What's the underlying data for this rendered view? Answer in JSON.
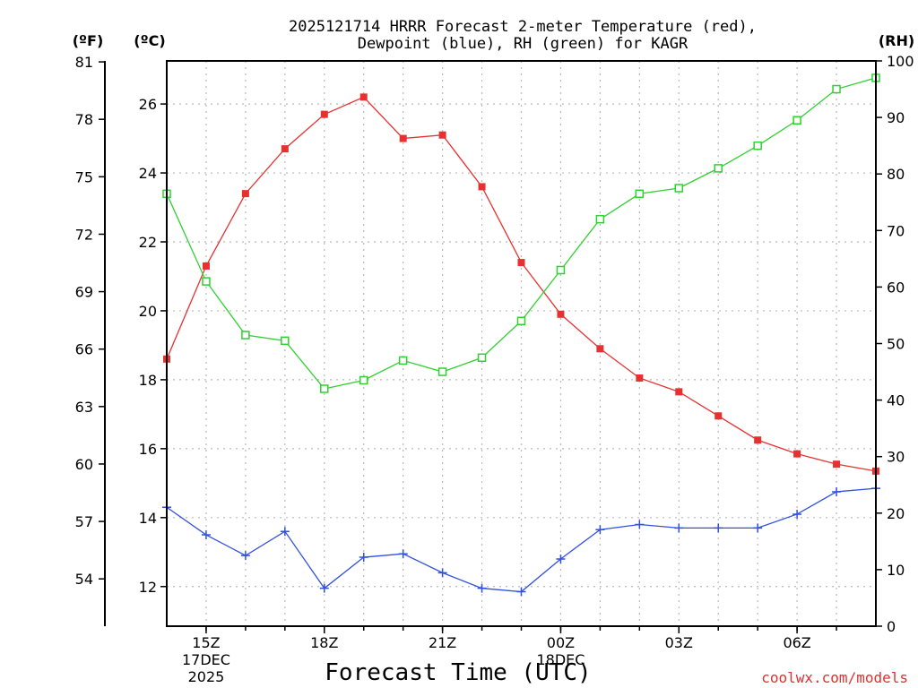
{
  "chart_data": {
    "type": "line",
    "title_line1": "2025121714 HRRR Forecast 2-meter Temperature (red),",
    "title_line2": "Dewpoint (blue), RH (green) for KAGR",
    "xlabel": "Forecast Time (UTC)",
    "credit": "coolwx.com/models",
    "left_unit_f": "(ºF)",
    "left_unit_c": "(ºC)",
    "right_unit": "(RH)",
    "fahrenheit_ticks": [
      "81",
      "78",
      "75",
      "72",
      "69",
      "66",
      "63",
      "60",
      "57",
      "54"
    ],
    "celsius_ticks": [
      "26",
      "24",
      "22",
      "20",
      "18",
      "16",
      "14",
      "12"
    ],
    "rh_ticks": [
      "100",
      "90",
      "80",
      "70",
      "60",
      "50",
      "40",
      "30",
      "20",
      "10",
      "0"
    ],
    "celsius_tick_values": [
      26,
      24,
      22,
      20,
      18,
      16,
      14,
      12
    ],
    "rh_tick_values": [
      100,
      90,
      80,
      70,
      60,
      50,
      40,
      30,
      20,
      10,
      0
    ],
    "fahrenheit_tick_values": [
      81,
      78,
      75,
      72,
      69,
      66,
      63,
      60,
      57,
      54
    ],
    "celsius_range": [
      10.85,
      27.25
    ],
    "rh_range": [
      0,
      100
    ],
    "x_range_hours": [
      14,
      32
    ],
    "x_ticks": [
      {
        "hour": 15,
        "l1": "15Z",
        "l2": "17DEC",
        "l3": "2025"
      },
      {
        "hour": 18,
        "l1": "18Z",
        "l2": "",
        "l3": ""
      },
      {
        "hour": 21,
        "l1": "21Z",
        "l2": "",
        "l3": ""
      },
      {
        "hour": 24,
        "l1": "00Z",
        "l2": "18DEC",
        "l3": ""
      },
      {
        "hour": 27,
        "l1": "03Z",
        "l2": "",
        "l3": ""
      },
      {
        "hour": 30,
        "l1": "06Z",
        "l2": "",
        "l3": ""
      }
    ],
    "hours": [
      14,
      15,
      16,
      17,
      18,
      19,
      20,
      21,
      22,
      23,
      24,
      25,
      26,
      27,
      28,
      29,
      30,
      31,
      32
    ],
    "series": [
      {
        "name": "2-meter Temperature",
        "axis": "celsius",
        "color": "#e83030",
        "marker": "filled-square",
        "values": [
          18.6,
          21.3,
          23.4,
          24.7,
          25.7,
          26.2,
          25.0,
          25.1,
          23.6,
          21.4,
          19.9,
          18.9,
          18.05,
          17.65,
          16.95,
          16.25,
          15.85,
          15.55,
          15.35
        ]
      },
      {
        "name": "Dewpoint",
        "axis": "celsius",
        "color": "#3050e0",
        "marker": "plus",
        "values": [
          14.3,
          13.5,
          12.9,
          13.6,
          11.95,
          12.85,
          12.95,
          12.4,
          11.95,
          11.85,
          12.8,
          13.65,
          13.8,
          13.7,
          13.7,
          13.7,
          14.1,
          14.75,
          14.85
        ]
      },
      {
        "name": "RH",
        "axis": "rh",
        "color": "#30d030",
        "marker": "open-square",
        "values": [
          76.5,
          61.0,
          51.5,
          50.5,
          42.0,
          43.5,
          47.0,
          45.0,
          47.5,
          54.0,
          63.0,
          72.0,
          76.5,
          77.5,
          81.0,
          85.0,
          89.5,
          95.0,
          97.0
        ]
      }
    ]
  }
}
